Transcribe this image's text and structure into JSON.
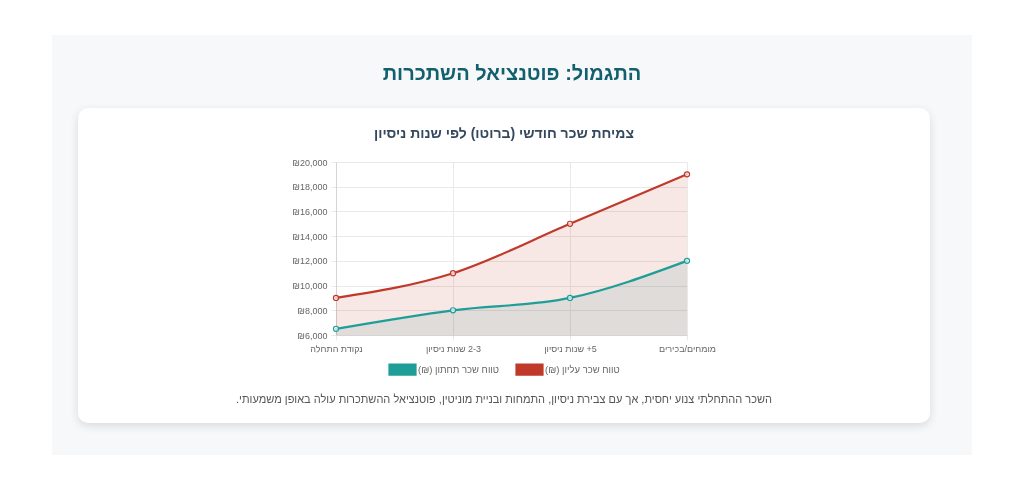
{
  "chart_data": {
    "type": "area",
    "title": "התגמול: פוטנציאל השתכרות",
    "subtitle": "צמיחת שכר חודשי (ברוטו) לפי שנות ניסיון",
    "annotations": [
      "השכר ההתחלתי צנוע יחסית, אך עם צבירת ניסיון, התמחות ובניית מוניטין, פוטנציאל ההשתכרות עולה באופן משמעותי."
    ],
    "categories": [
      "נקודת התחלה",
      "2-3 שנות ניסיון",
      "5+ שנות ניסיון",
      "מומחים/בכירים"
    ],
    "series": [
      {
        "name": "טווח שכר תחתון (₪)",
        "color": "#1f9e99",
        "values": [
          6500,
          8000,
          9000,
          12000
        ]
      },
      {
        "name": "טווח שכר עליון (₪)",
        "color": "#c0392b",
        "values": [
          9000,
          11000,
          15000,
          19000
        ]
      }
    ],
    "ylim": [
      6000,
      20000
    ],
    "yticks": [
      {
        "value": 6000,
        "label": "₪6,000"
      },
      {
        "value": 8000,
        "label": "₪8,000"
      },
      {
        "value": 10000,
        "label": "₪10,000"
      },
      {
        "value": 12000,
        "label": "₪12,000"
      },
      {
        "value": 14000,
        "label": "₪14,000"
      },
      {
        "value": 16000,
        "label": "₪16,000"
      },
      {
        "value": 18000,
        "label": "₪18,000"
      },
      {
        "value": 20000,
        "label": "₪20,000"
      }
    ],
    "grid": true,
    "legend": "bottom",
    "marker": "circle"
  }
}
